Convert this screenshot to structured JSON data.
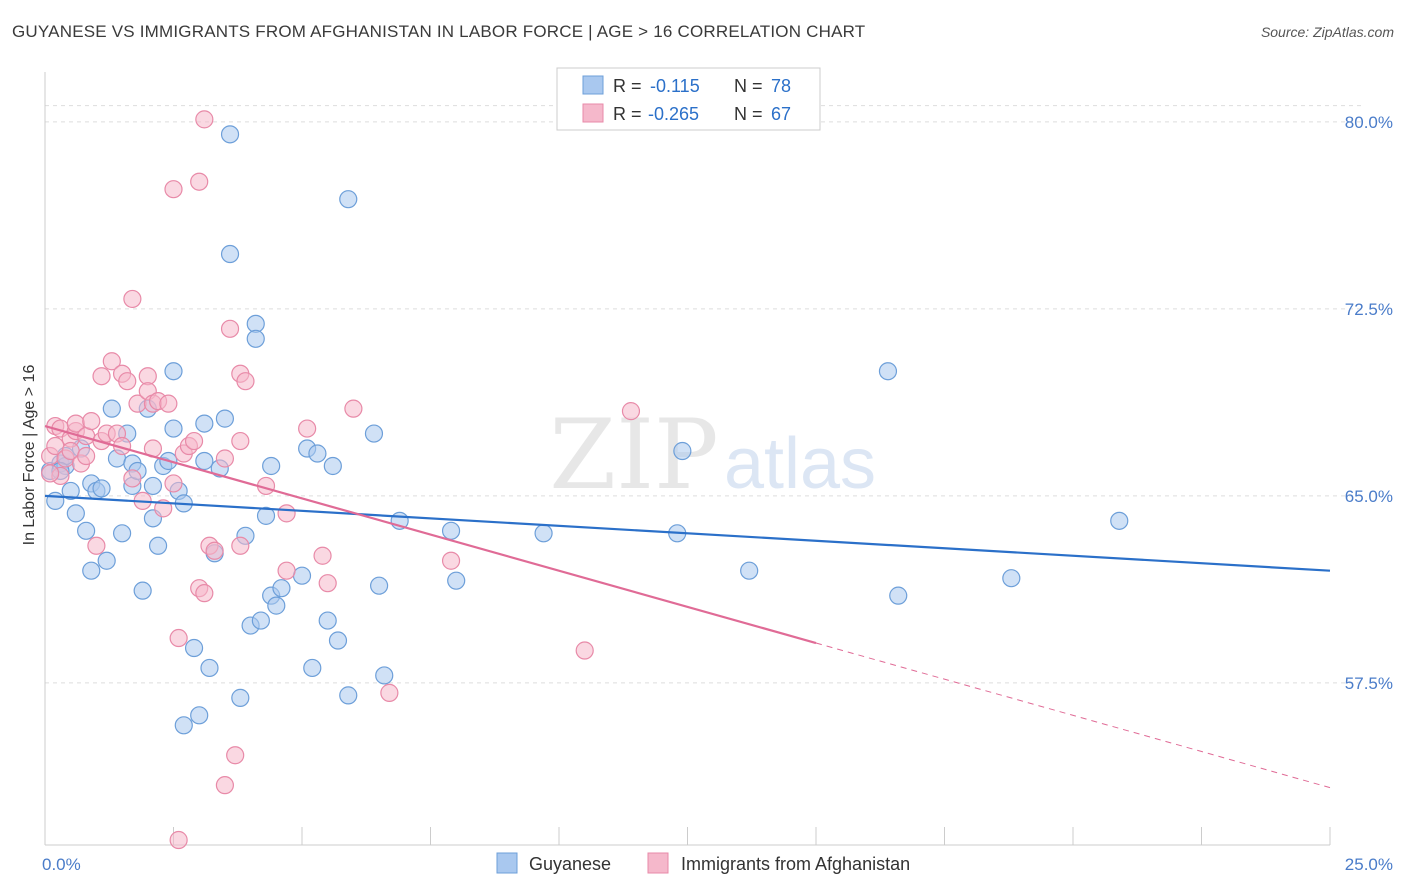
{
  "title": "GUYANESE VS IMMIGRANTS FROM AFGHANISTAN IN LABOR FORCE | AGE > 16 CORRELATION CHART",
  "source": "Source: ZipAtlas.com",
  "watermark": {
    "zip": "ZIP",
    "atlas": "atlas"
  },
  "colors": {
    "blue_fill": "#a9c8ef",
    "blue_stroke": "#6d9fd9",
    "blue_line": "#2b70c9",
    "pink_fill": "#f5b8cb",
    "pink_stroke": "#e88aa8",
    "pink_line": "#e06b96",
    "tick_text": "#4a7cc9",
    "grid": "#dddddd"
  },
  "legend_top": [
    {
      "r_label": "R =",
      "r_value": "-0.115",
      "n_label": "N =",
      "n_value": "78",
      "series": "blue"
    },
    {
      "r_label": "R =",
      "r_value": "-0.265",
      "n_label": "N =",
      "n_value": "67",
      "series": "pink"
    }
  ],
  "legend_bottom": [
    {
      "label": "Guyanese",
      "series": "blue"
    },
    {
      "label": "Immigrants from Afghanistan",
      "series": "pink"
    }
  ],
  "chart_data": {
    "type": "scatter",
    "title": "GUYANESE VS IMMIGRANTS FROM AFGHANISTAN IN LABOR FORCE | AGE > 16 CORRELATION CHART",
    "xlabel": "",
    "ylabel": "In Labor Force | Age > 16",
    "xlim": [
      0,
      25
    ],
    "ylim": [
      51.0,
      82.0
    ],
    "x_tick_labels": [
      {
        "value": 0,
        "label": "0.0%"
      },
      {
        "value": 25,
        "label": "25.0%"
      }
    ],
    "y_tick_labels": [
      {
        "value": 80.0,
        "label": "80.0%"
      },
      {
        "value": 72.5,
        "label": "72.5%"
      },
      {
        "value": 65.0,
        "label": "65.0%"
      },
      {
        "value": 57.5,
        "label": "57.5%"
      }
    ],
    "grid": true,
    "legend_position": "top-center",
    "series": [
      {
        "name": "Guyanese",
        "color": "blue",
        "trend": {
          "x": [
            0,
            25
          ],
          "y": [
            65.0,
            62.0
          ],
          "dashed_from": null
        },
        "points": [
          [
            0.1,
            66.0
          ],
          [
            0.2,
            64.8
          ],
          [
            0.3,
            66.3
          ],
          [
            0.4,
            66.2
          ],
          [
            0.4,
            66.6
          ],
          [
            0.5,
            65.2
          ],
          [
            0.6,
            64.3
          ],
          [
            0.7,
            66.9
          ],
          [
            0.8,
            63.6
          ],
          [
            0.9,
            65.5
          ],
          [
            0.9,
            62.0
          ],
          [
            1.0,
            65.2
          ],
          [
            1.1,
            65.3
          ],
          [
            1.2,
            62.4
          ],
          [
            1.3,
            68.5
          ],
          [
            1.4,
            66.5
          ],
          [
            1.5,
            63.5
          ],
          [
            1.6,
            67.5
          ],
          [
            1.7,
            65.4
          ],
          [
            1.7,
            66.3
          ],
          [
            1.8,
            66.0
          ],
          [
            1.9,
            61.2
          ],
          [
            2.0,
            68.5
          ],
          [
            2.1,
            65.4
          ],
          [
            2.1,
            64.1
          ],
          [
            2.2,
            63.0
          ],
          [
            2.3,
            66.2
          ],
          [
            2.4,
            66.4
          ],
          [
            2.5,
            67.7
          ],
          [
            2.5,
            70.0
          ],
          [
            2.6,
            65.2
          ],
          [
            2.7,
            64.7
          ],
          [
            2.7,
            55.8
          ],
          [
            2.9,
            58.9
          ],
          [
            3.0,
            56.2
          ],
          [
            3.1,
            66.4
          ],
          [
            3.1,
            67.9
          ],
          [
            3.2,
            58.1
          ],
          [
            3.3,
            62.7
          ],
          [
            3.4,
            66.1
          ],
          [
            3.5,
            68.1
          ],
          [
            3.6,
            79.5
          ],
          [
            3.6,
            74.7
          ],
          [
            3.8,
            56.9
          ],
          [
            3.9,
            63.4
          ],
          [
            4.0,
            59.8
          ],
          [
            4.1,
            71.9
          ],
          [
            4.1,
            71.3
          ],
          [
            4.2,
            60.0
          ],
          [
            4.3,
            64.2
          ],
          [
            4.4,
            66.2
          ],
          [
            4.4,
            61.0
          ],
          [
            4.5,
            60.6
          ],
          [
            4.6,
            61.3
          ],
          [
            5.0,
            61.8
          ],
          [
            5.1,
            66.9
          ],
          [
            5.2,
            58.1
          ],
          [
            5.3,
            66.7
          ],
          [
            5.5,
            60.0
          ],
          [
            5.6,
            66.2
          ],
          [
            5.7,
            59.2
          ],
          [
            5.9,
            57.0
          ],
          [
            5.9,
            76.9
          ],
          [
            6.4,
            67.5
          ],
          [
            6.5,
            61.4
          ],
          [
            6.6,
            57.8
          ],
          [
            6.9,
            64.0
          ],
          [
            7.9,
            63.6
          ],
          [
            8.0,
            61.6
          ],
          [
            9.7,
            63.5
          ],
          [
            12.3,
            63.5
          ],
          [
            12.4,
            66.8
          ],
          [
            13.7,
            62.0
          ],
          [
            16.4,
            70.0
          ],
          [
            16.6,
            61.0
          ],
          [
            18.8,
            61.7
          ],
          [
            20.9,
            64.0
          ],
          [
            0.3,
            66.0
          ]
        ]
      },
      {
        "name": "Immigrants from Afghanistan",
        "color": "pink",
        "trend": {
          "x": [
            0,
            25
          ],
          "y": [
            67.8,
            53.3
          ],
          "dashed_from": 15.0
        },
        "points": [
          [
            0.1,
            66.6
          ],
          [
            0.2,
            67.8
          ],
          [
            0.2,
            67.0
          ],
          [
            0.3,
            67.7
          ],
          [
            0.3,
            65.8
          ],
          [
            0.4,
            66.5
          ],
          [
            0.5,
            67.3
          ],
          [
            0.5,
            66.8
          ],
          [
            0.6,
            67.6
          ],
          [
            0.6,
            67.9
          ],
          [
            0.7,
            66.3
          ],
          [
            0.8,
            67.4
          ],
          [
            0.8,
            66.6
          ],
          [
            0.9,
            68.0
          ],
          [
            1.0,
            63.0
          ],
          [
            1.1,
            69.8
          ],
          [
            1.1,
            67.2
          ],
          [
            1.2,
            67.5
          ],
          [
            1.3,
            70.4
          ],
          [
            1.4,
            67.5
          ],
          [
            1.5,
            67.0
          ],
          [
            1.5,
            69.9
          ],
          [
            1.6,
            69.6
          ],
          [
            1.7,
            72.9
          ],
          [
            1.7,
            65.7
          ],
          [
            1.8,
            68.7
          ],
          [
            1.9,
            64.8
          ],
          [
            2.0,
            69.8
          ],
          [
            2.0,
            69.2
          ],
          [
            2.1,
            66.9
          ],
          [
            2.1,
            68.7
          ],
          [
            2.2,
            68.8
          ],
          [
            2.3,
            64.5
          ],
          [
            2.4,
            68.7
          ],
          [
            2.5,
            77.3
          ],
          [
            2.5,
            65.5
          ],
          [
            2.6,
            59.3
          ],
          [
            2.6,
            51.2
          ],
          [
            2.7,
            66.7
          ],
          [
            2.8,
            67.0
          ],
          [
            2.9,
            67.2
          ],
          [
            3.0,
            61.3
          ],
          [
            3.0,
            77.6
          ],
          [
            3.1,
            61.1
          ],
          [
            3.1,
            80.1
          ],
          [
            3.2,
            63.0
          ],
          [
            3.3,
            62.8
          ],
          [
            3.5,
            53.4
          ],
          [
            3.5,
            66.5
          ],
          [
            3.6,
            71.7
          ],
          [
            3.7,
            54.6
          ],
          [
            3.8,
            67.2
          ],
          [
            3.8,
            63.0
          ],
          [
            3.8,
            69.9
          ],
          [
            3.9,
            69.6
          ],
          [
            4.3,
            65.4
          ],
          [
            4.7,
            64.3
          ],
          [
            4.7,
            62.0
          ],
          [
            5.1,
            67.7
          ],
          [
            5.4,
            62.6
          ],
          [
            5.5,
            61.5
          ],
          [
            6.0,
            68.5
          ],
          [
            6.7,
            57.1
          ],
          [
            7.9,
            62.4
          ],
          [
            10.5,
            58.8
          ],
          [
            11.4,
            68.4
          ],
          [
            0.1,
            65.9
          ]
        ]
      }
    ]
  }
}
